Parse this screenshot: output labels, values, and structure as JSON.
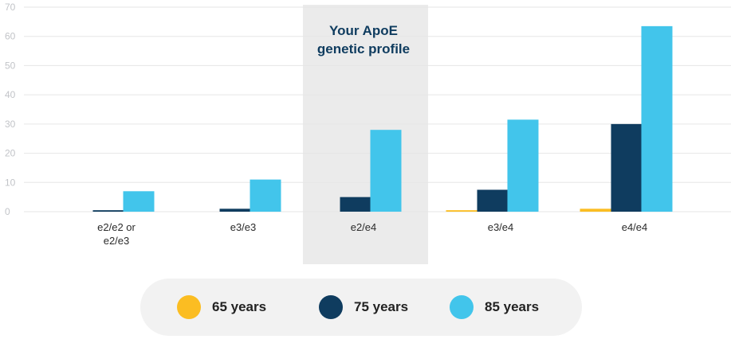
{
  "chart_data": {
    "type": "bar",
    "categories": [
      [
        "e2/e2 or",
        "e2/e3"
      ],
      [
        "e3/e3"
      ],
      [
        "e2/e4"
      ],
      [
        "e3/e4"
      ],
      [
        "e4/e4"
      ]
    ],
    "series": [
      {
        "name": "65 years",
        "color": "#fbbd22",
        "values": [
          0,
          0,
          0,
          0.5,
          1
        ]
      },
      {
        "name": "75 years",
        "color": "#0f3c5f",
        "values": [
          0.5,
          1,
          5,
          7.5,
          30
        ]
      },
      {
        "name": "85 years",
        "color": "#42c5eb",
        "values": [
          7,
          11,
          28,
          31.5,
          63.5
        ]
      }
    ],
    "ylim": [
      0,
      70
    ],
    "yticks": [
      0,
      10,
      20,
      30,
      40,
      50,
      60,
      70
    ],
    "highlight": {
      "category_index": 2,
      "label_lines": [
        "Your ApoE",
        "genetic profile"
      ]
    },
    "grid": true,
    "legend_position": "bottom"
  },
  "legend": [
    {
      "label": "65 years",
      "color": "#fbbd22"
    },
    {
      "label": "75 years",
      "color": "#0f3c5f"
    },
    {
      "label": "85 years",
      "color": "#42c5eb"
    }
  ]
}
